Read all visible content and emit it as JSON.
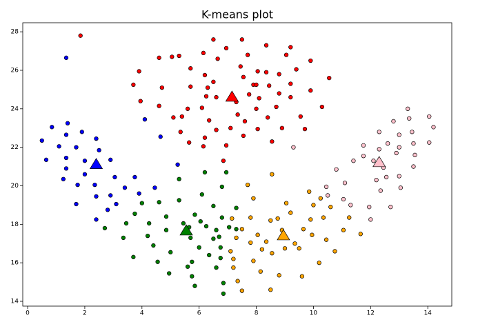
{
  "chart_data": {
    "type": "scatter",
    "title": "K-means plot",
    "xlim": [
      -0.17,
      14.84
    ],
    "ylim": [
      13.75,
      28.47
    ],
    "xticks": [
      0,
      2,
      4,
      6,
      8,
      10,
      12,
      14
    ],
    "yticks": [
      14,
      16,
      18,
      20,
      22,
      24,
      26,
      28
    ],
    "series": [
      {
        "color": "#0000ff",
        "marker": "circle",
        "x": [
          0.5,
          0.65,
          0.85,
          1.1,
          1.35,
          1.4,
          1.35,
          1.35,
          1.25,
          1.7,
          1.9,
          2.0,
          1.75,
          2.0,
          2.4,
          2.5,
          2.9,
          2.35,
          2.4,
          1.7,
          2.4,
          2.9,
          3.1,
          3.05,
          3.4,
          3.75,
          3.9,
          4.45,
          2.8,
          1.35,
          4.1,
          4.65,
          5.25
        ],
        "y": [
          22.35,
          21.35,
          23.05,
          22.05,
          22.65,
          23.25,
          21.45,
          20.9,
          20.35,
          22.0,
          22.8,
          21.3,
          20.05,
          20.6,
          22.45,
          21.85,
          21.35,
          20.05,
          19.45,
          19.05,
          18.25,
          19.5,
          19.05,
          20.45,
          19.9,
          20.45,
          19.6,
          19.9,
          18.75,
          26.65,
          23.45,
          22.55,
          21.1
        ]
      },
      {
        "color": "#ff0000",
        "marker": "circle",
        "x": [
          1.85,
          3.9,
          3.7,
          3.95,
          4.6,
          4.7,
          4.6,
          5.05,
          5.3,
          5.7,
          5.7,
          5.6,
          5.4,
          5.1,
          5.35,
          5.65,
          6.15,
          6.5,
          6.65,
          6.95,
          6.2,
          6.3,
          6.5,
          6.6,
          6.25,
          6.1,
          6.35,
          6.15,
          6.2,
          6.6,
          6.95,
          7.1,
          6.85,
          7.5,
          7.7,
          7.45,
          7.55,
          7.9,
          7.75,
          7.3,
          7.35,
          7.6,
          7.55,
          8.05,
          8.0,
          8.1,
          8.0,
          8.05,
          8.35,
          8.35,
          8.45,
          8.4,
          8.55,
          8.7,
          8.8,
          8.8,
          8.9,
          9.05,
          9.2,
          9.2,
          9.2,
          9.4,
          9.55,
          9.7,
          9.9,
          9.9,
          10.3,
          10.55
        ],
        "y": [
          27.8,
          25.95,
          25.25,
          24.4,
          26.65,
          25.1,
          24.15,
          26.7,
          26.75,
          26.1,
          25.15,
          24.0,
          23.6,
          23.55,
          22.8,
          22.25,
          26.9,
          27.6,
          26.6,
          27.15,
          25.75,
          25.1,
          25.4,
          24.6,
          24.65,
          24.05,
          23.4,
          22.05,
          22.5,
          22.9,
          22.1,
          23.0,
          21.3,
          27.6,
          26.8,
          26.2,
          25.65,
          25.25,
          24.75,
          24.35,
          23.7,
          23.35,
          22.6,
          25.95,
          25.25,
          24.55,
          24.0,
          22.95,
          27.3,
          25.9,
          25.2,
          23.55,
          22.3,
          24.1,
          24.8,
          25.8,
          23.0,
          26.8,
          27.2,
          25.3,
          24.6,
          26.05,
          23.6,
          22.95,
          26.5,
          24.95,
          24.1,
          25.6
        ]
      },
      {
        "color": "#008000",
        "marker": "circle",
        "x": [
          2.7,
          3.35,
          3.45,
          3.7,
          3.75,
          4.0,
          4.2,
          4.25,
          4.4,
          4.55,
          4.6,
          4.85,
          4.85,
          4.95,
          5.0,
          5.3,
          5.3,
          5.45,
          5.6,
          5.65,
          5.7,
          5.75,
          5.75,
          5.85,
          5.85,
          6.0,
          6.05,
          6.1,
          6.2,
          6.25,
          6.35,
          6.5,
          6.5,
          6.6,
          6.6,
          6.7,
          6.75,
          6.75,
          6.8,
          6.8,
          6.85,
          6.85,
          6.95,
          7.05,
          7.3,
          7.3
        ],
        "y": [
          17.8,
          17.3,
          18.05,
          16.3,
          18.55,
          19.1,
          17.4,
          18.05,
          16.9,
          16.05,
          19.15,
          18.4,
          17.7,
          15.45,
          16.55,
          19.25,
          20.35,
          18.05,
          15.8,
          17.85,
          17.3,
          16.05,
          15.3,
          14.8,
          18.5,
          16.8,
          18.15,
          19.55,
          20.7,
          17.9,
          16.4,
          17.25,
          18.95,
          17.7,
          15.75,
          17.35,
          16.8,
          16.25,
          19.95,
          18.35,
          14.95,
          14.4,
          20.7,
          17.85,
          17.75,
          18.85
        ]
      },
      {
        "color": "#ffa500",
        "marker": "circle",
        "x": [
          7.1,
          7.2,
          7.2,
          7.3,
          7.35,
          7.5,
          7.5,
          7.7,
          7.8,
          7.8,
          7.9,
          7.9,
          8.05,
          8.15,
          8.2,
          8.35,
          8.5,
          8.55,
          8.5,
          8.55,
          8.75,
          8.8,
          8.9,
          9.0,
          9.05,
          9.2,
          9.35,
          9.5,
          9.6,
          9.65,
          9.85,
          9.9,
          9.95,
          10.0,
          10.2,
          10.25,
          10.35,
          10.45,
          10.6,
          10.75,
          11.05,
          11.25,
          11.65,
          7.15
        ],
        "y": [
          16.6,
          16.2,
          15.75,
          17.3,
          15.05,
          14.55,
          17.75,
          20.05,
          18.35,
          17.05,
          16.1,
          19.35,
          17.45,
          15.55,
          16.7,
          17.1,
          18.2,
          16.5,
          14.6,
          20.6,
          18.3,
          15.35,
          17.7,
          16.75,
          19.1,
          18.6,
          17.0,
          16.75,
          15.3,
          17.75,
          19.7,
          18.25,
          17.45,
          19.0,
          16.0,
          19.35,
          18.35,
          17.2,
          18.9,
          16.6,
          17.7,
          18.35,
          17.5,
          18.3
        ]
      },
      {
        "color": "#ffc0cb",
        "marker": "circle",
        "x": [
          9.3,
          10.45,
          10.5,
          10.8,
          11.05,
          11.1,
          11.3,
          11.4,
          11.75,
          11.75,
          11.95,
          12.0,
          12.1,
          12.2,
          12.3,
          12.3,
          12.35,
          12.45,
          12.55,
          12.6,
          12.7,
          12.8,
          12.9,
          13.0,
          13.05,
          13.0,
          13.0,
          13.3,
          13.35,
          13.45,
          13.5,
          13.55,
          13.5,
          14.05,
          14.05,
          14.2
        ],
        "y": [
          22.0,
          19.95,
          19.5,
          20.85,
          19.3,
          20.15,
          19.0,
          21.3,
          21.55,
          22.1,
          18.9,
          18.25,
          21.3,
          20.3,
          22.8,
          21.9,
          19.75,
          20.95,
          20.45,
          22.2,
          18.9,
          23.35,
          21.7,
          20.5,
          19.9,
          22.0,
          22.65,
          24.0,
          23.5,
          22.8,
          22.2,
          21.6,
          21.0,
          23.6,
          22.25,
          23.05
        ]
      },
      {
        "color": "#0000ff",
        "marker": "triangle",
        "x": [
          2.4
        ],
        "y": [
          21.1
        ]
      },
      {
        "color": "#ff0000",
        "marker": "triangle",
        "x": [
          7.15
        ],
        "y": [
          24.6
        ]
      },
      {
        "color": "#008000",
        "marker": "triangle",
        "x": [
          5.55
        ],
        "y": [
          17.65
        ]
      },
      {
        "color": "#ffa500",
        "marker": "triangle",
        "x": [
          8.95
        ],
        "y": [
          17.4
        ]
      },
      {
        "color": "#ffc0cb",
        "marker": "triangle",
        "x": [
          12.3
        ],
        "y": [
          21.2
        ]
      }
    ]
  }
}
